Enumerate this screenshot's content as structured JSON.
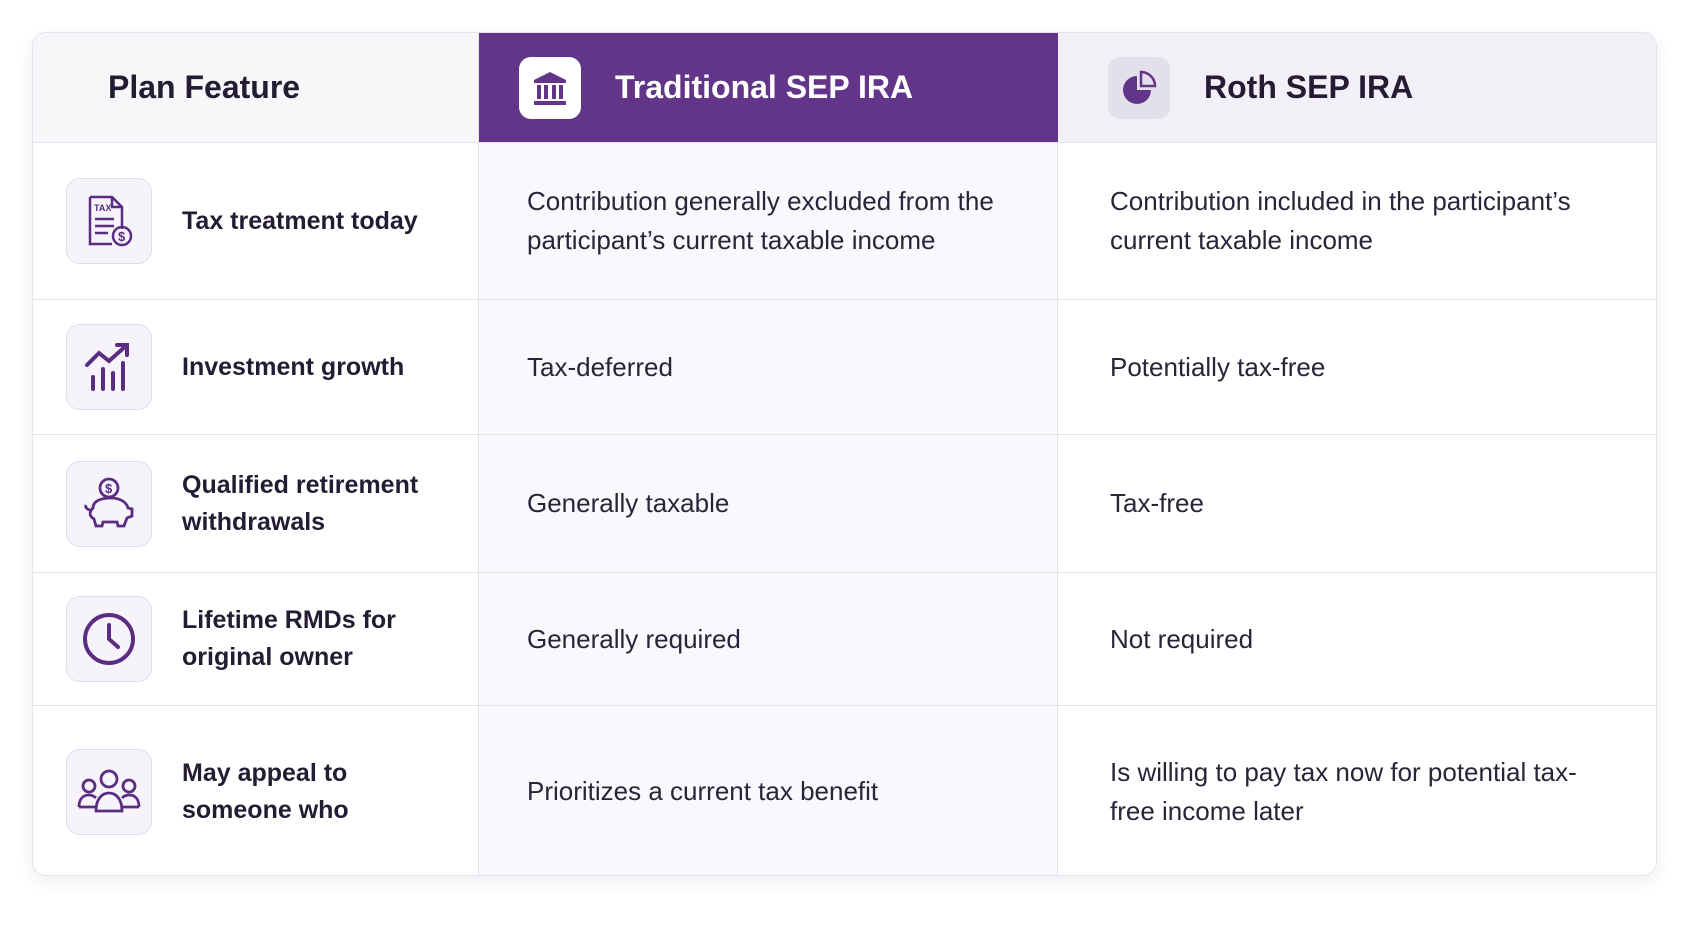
{
  "table": {
    "header": [
      "Plan Feature",
      "Traditional SEP IRA",
      "Roth SEP IRA"
    ],
    "rows": [
      [
        "Tax treatment today",
        "Contribution generally excluded from the participant’s current taxable income",
        "Contribution included in the participant’s current taxable income"
      ],
      [
        "Investment growth",
        "Tax-deferred",
        "Potentially tax-free"
      ],
      [
        "Qualified retirement withdrawals",
        "Generally taxable",
        "Tax-free"
      ],
      [
        "Lifetime RMDs for original owner",
        "Generally required",
        "Not required"
      ],
      [
        "May appeal to someone who",
        "Prioritizes a current tax benefit",
        "Is willing to pay tax now for potential tax-free income later"
      ]
    ]
  }
}
